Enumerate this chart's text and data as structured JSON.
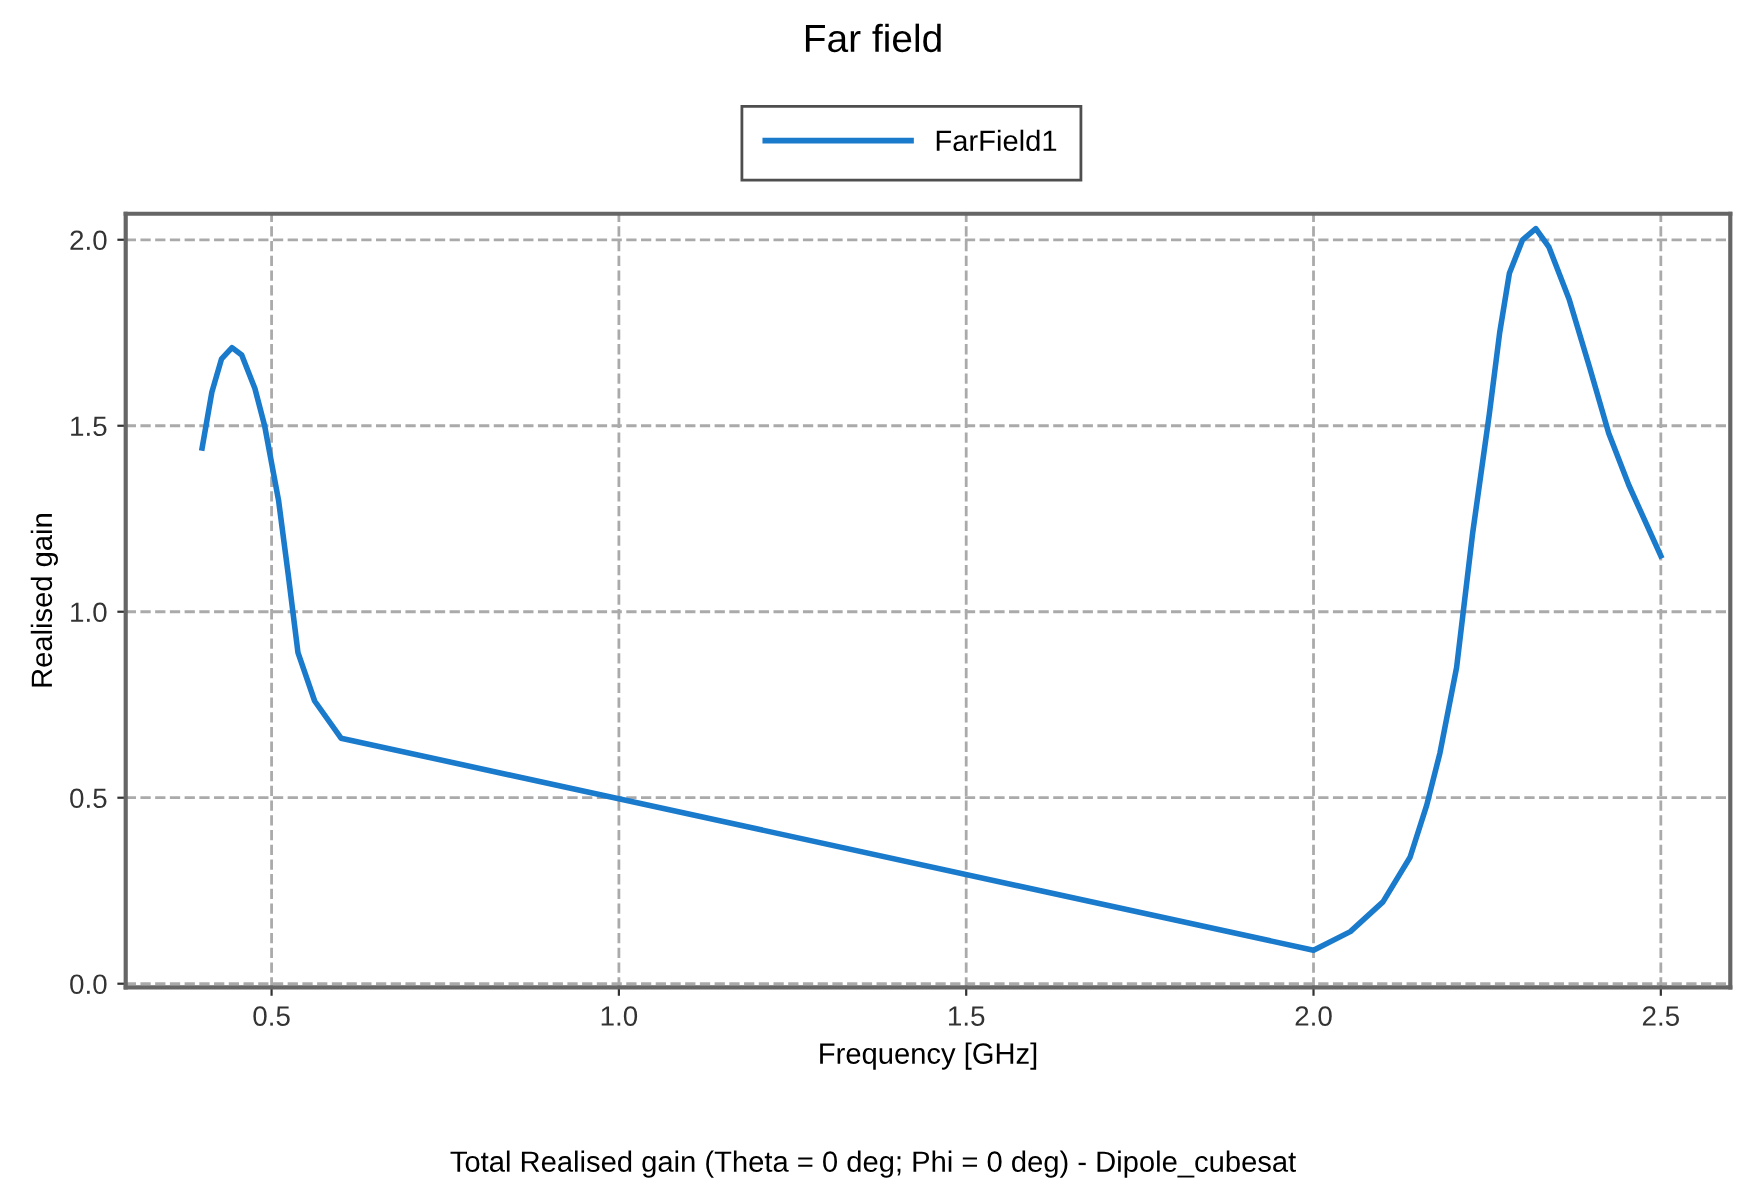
{
  "chart_data": {
    "type": "line",
    "title": "Far field",
    "xlabel": "Frequency [GHz]",
    "ylabel": "Realised gain",
    "annotations": [
      "Total Realised gain (Theta = 0 deg; Phi = 0 deg) - Dipole_cubesat"
    ],
    "xlim": [
      0.29,
      2.6
    ],
    "ylim": [
      -0.01,
      2.07
    ],
    "xticks": [
      0.5,
      {
        "value": 1,
        "label": "1.0"
      },
      1.5,
      {
        "value": 2,
        "label": "2.0"
      },
      2.5
    ],
    "yticks": [
      {
        "value": 0,
        "label": "0.0"
      },
      0.5,
      {
        "value": 1,
        "label": "1.0"
      },
      1.5,
      {
        "value": 2,
        "label": "2.0"
      }
    ],
    "grid": true,
    "legend": "top",
    "marker": "none",
    "line_style": "solid",
    "series": [
      {
        "name": "FarField1",
        "color": "#1a7acc",
        "x": [
          0.4,
          0.414,
          0.428,
          0.443,
          0.457,
          0.476,
          0.49,
          0.51,
          0.524,
          0.538,
          0.562,
          0.6,
          2.0,
          2.053,
          2.1,
          2.139,
          2.163,
          2.182,
          2.206,
          2.229,
          2.253,
          2.268,
          2.282,
          2.301,
          2.32,
          2.339,
          2.368,
          2.397,
          2.425,
          2.454,
          2.5
        ],
        "values": [
          1.44,
          1.59,
          1.68,
          1.71,
          1.69,
          1.6,
          1.5,
          1.3,
          1.1,
          0.89,
          0.76,
          0.66,
          0.09,
          0.14,
          0.22,
          0.34,
          0.48,
          0.62,
          0.85,
          1.21,
          1.53,
          1.75,
          1.91,
          2.0,
          2.03,
          1.98,
          1.84,
          1.66,
          1.48,
          1.34,
          1.15
        ]
      }
    ]
  }
}
